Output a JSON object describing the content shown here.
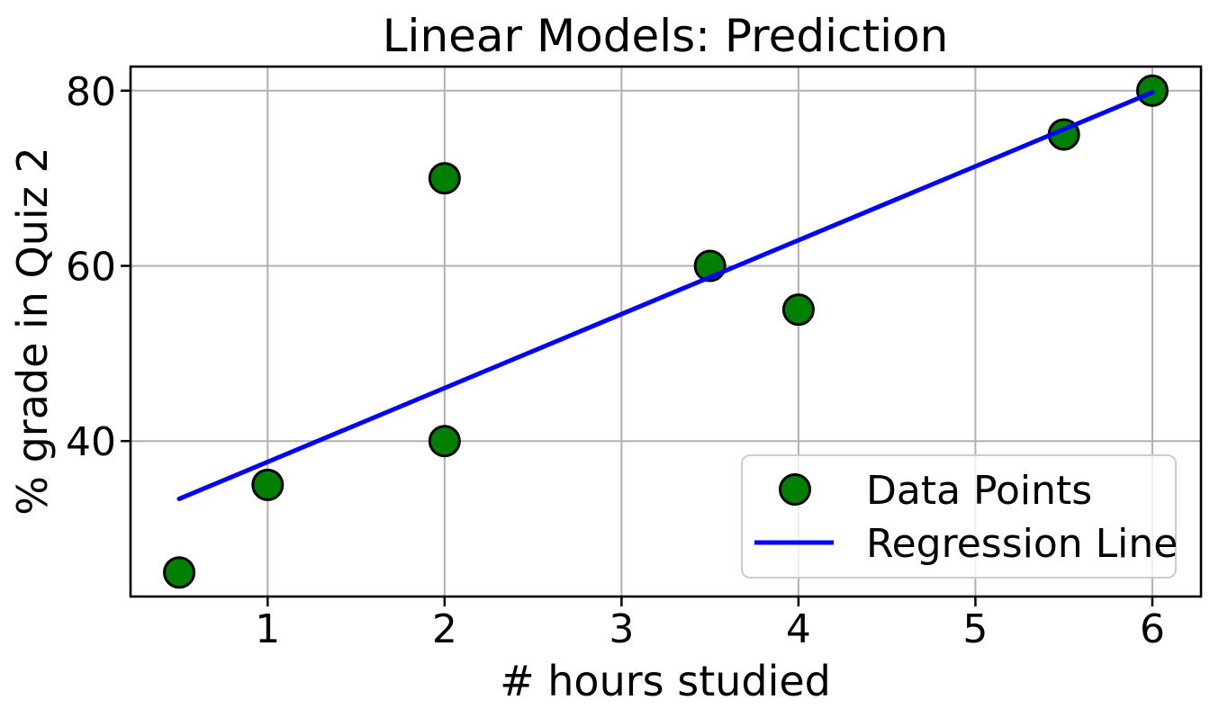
{
  "chart_data": {
    "type": "scatter",
    "title": "Linear Models: Prediction",
    "xlabel": "# hours studied",
    "ylabel": "% grade in Quiz 2",
    "series": [
      {
        "name": "Data Points",
        "type": "scatter",
        "x": [
          0.5,
          1,
          2,
          2,
          3.5,
          4,
          5.5,
          6
        ],
        "y": [
          25,
          35,
          40,
          70,
          60,
          55,
          75,
          80
        ]
      },
      {
        "name": "Regression Line",
        "type": "line",
        "x": [
          0.5,
          6
        ],
        "y": [
          33.4,
          79.8
        ]
      }
    ],
    "xticks": [
      1,
      2,
      3,
      4,
      5,
      6
    ],
    "yticks": [
      40,
      60,
      80
    ],
    "xlim": [
      0.225,
      6.275
    ],
    "ylim": [
      22.25,
      82.75
    ],
    "grid": true,
    "legend": {
      "position": "lower right",
      "entries": [
        {
          "label": "Data Points",
          "marker": "circle",
          "color": "#008000"
        },
        {
          "label": "Regression Line",
          "marker": "line",
          "color": "#0000ff"
        }
      ]
    },
    "colors": {
      "point_fill": "#008000",
      "point_edge": "#000000",
      "line": "#0000ff",
      "grid": "#b0b0b0",
      "spine": "#000000",
      "legend_edge": "#cccccc",
      "background": "#ffffff"
    }
  }
}
